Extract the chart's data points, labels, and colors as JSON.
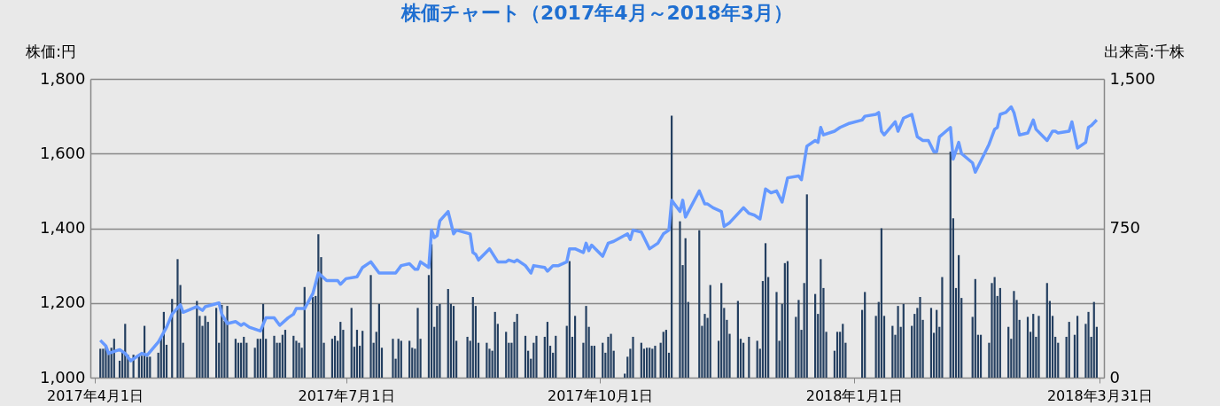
{
  "chart_data": {
    "type": "line",
    "title": "株価チャート（2017年4月～2018年3月）",
    "ylabel": "株価:円",
    "y2label": "出来高:千株",
    "xlim": [
      "2017-04-01",
      "2018-03-31"
    ],
    "xticks": [
      {
        "value": "2017-04-01",
        "label": "2017年4月1日"
      },
      {
        "value": "2017-07-01",
        "label": "2017年7月1日"
      },
      {
        "value": "2017-10-01",
        "label": "2017年10月1日"
      },
      {
        "value": "2018-01-01",
        "label": "2018年1月1日"
      },
      {
        "value": "2018-03-31",
        "label": "2018年3月31日"
      }
    ],
    "ylim": [
      1000,
      1800
    ],
    "yticks": [
      {
        "value": 1000,
        "label": "1,000"
      },
      {
        "value": 1200,
        "label": "1,200"
      },
      {
        "value": 1400,
        "label": "1,400"
      },
      {
        "value": 1600,
        "label": "1,600"
      },
      {
        "value": 1800,
        "label": "1,800"
      }
    ],
    "y2lim": [
      0,
      1500
    ],
    "y2ticks": [
      {
        "value": 0,
        "label": "0"
      },
      {
        "value": 750,
        "label": "750"
      },
      {
        "value": 1500,
        "label": "1,500"
      }
    ],
    "grid": "y",
    "legend": false,
    "series": [
      {
        "type": "bar",
        "axis": "y2",
        "color": "#243f60",
        "x": [
          "2017-04-03",
          "2017-04-04",
          "2017-04-05",
          "2017-04-06",
          "2017-04-07",
          "2017-04-08",
          "2017-04-10",
          "2017-04-11",
          "2017-04-12",
          "2017-04-13",
          "2017-04-15",
          "2017-04-17",
          "2017-04-18",
          "2017-04-19",
          "2017-04-20",
          "2017-04-21",
          "2017-04-24",
          "2017-04-25",
          "2017-04-26",
          "2017-04-27",
          "2017-04-29",
          "2017-05-01",
          "2017-05-02",
          "2017-05-03",
          "2017-05-08",
          "2017-05-09",
          "2017-05-10",
          "2017-05-11",
          "2017-05-12",
          "2017-05-15",
          "2017-05-16",
          "2017-05-17",
          "2017-05-18",
          "2017-05-19",
          "2017-05-22",
          "2017-05-23",
          "2017-05-24",
          "2017-05-25",
          "2017-05-26",
          "2017-05-29",
          "2017-05-30",
          "2017-05-31",
          "2017-06-01",
          "2017-06-02",
          "2017-06-05",
          "2017-06-06",
          "2017-06-07",
          "2017-06-08",
          "2017-06-09",
          "2017-06-12",
          "2017-06-13",
          "2017-06-14",
          "2017-06-15",
          "2017-06-16",
          "2017-06-19",
          "2017-06-20",
          "2017-06-21",
          "2017-06-22",
          "2017-06-23",
          "2017-06-26",
          "2017-06-27",
          "2017-06-28",
          "2017-06-29",
          "2017-06-30",
          "2017-07-03",
          "2017-07-04",
          "2017-07-05",
          "2017-07-06",
          "2017-07-07",
          "2017-07-10",
          "2017-07-11",
          "2017-07-12",
          "2017-07-13",
          "2017-07-14",
          "2017-07-18",
          "2017-07-19",
          "2017-07-20",
          "2017-07-21",
          "2017-07-24",
          "2017-07-25",
          "2017-07-26",
          "2017-07-27",
          "2017-07-28",
          "2017-07-31",
          "2017-08-01",
          "2017-08-02",
          "2017-08-03",
          "2017-08-04",
          "2017-08-07",
          "2017-08-08",
          "2017-08-09",
          "2017-08-10",
          "2017-08-14",
          "2017-08-15",
          "2017-08-16",
          "2017-08-17",
          "2017-08-18",
          "2017-08-21",
          "2017-08-22",
          "2017-08-23",
          "2017-08-24",
          "2017-08-25",
          "2017-08-28",
          "2017-08-29",
          "2017-08-30",
          "2017-08-31",
          "2017-09-01",
          "2017-09-04",
          "2017-09-05",
          "2017-09-06",
          "2017-09-07",
          "2017-09-08",
          "2017-09-11",
          "2017-09-12",
          "2017-09-13",
          "2017-09-14",
          "2017-09-15",
          "2017-09-19",
          "2017-09-20",
          "2017-09-21",
          "2017-09-22",
          "2017-09-25",
          "2017-09-26",
          "2017-09-27",
          "2017-09-28",
          "2017-09-29",
          "2017-10-02",
          "2017-10-03",
          "2017-10-04",
          "2017-10-05",
          "2017-10-06",
          "2017-10-10",
          "2017-10-11",
          "2017-10-12",
          "2017-10-13",
          "2017-10-16",
          "2017-10-17",
          "2017-10-18",
          "2017-10-19",
          "2017-10-20",
          "2017-10-21",
          "2017-10-23",
          "2017-10-24",
          "2017-10-25",
          "2017-10-26",
          "2017-10-27",
          "2017-10-30",
          "2017-10-31",
          "2017-11-01",
          "2017-11-02",
          "2017-11-06",
          "2017-11-07",
          "2017-11-08",
          "2017-11-09",
          "2017-11-10",
          "2017-11-13",
          "2017-11-14",
          "2017-11-15",
          "2017-11-16",
          "2017-11-17",
          "2017-11-20",
          "2017-11-21",
          "2017-11-22",
          "2017-11-24",
          "2017-11-27",
          "2017-11-28",
          "2017-11-29",
          "2017-11-30",
          "2017-12-01",
          "2017-12-04",
          "2017-12-05",
          "2017-12-06",
          "2017-12-07",
          "2017-12-08",
          "2017-12-11",
          "2017-12-12",
          "2017-12-13",
          "2017-12-14",
          "2017-12-15",
          "2017-12-18",
          "2017-12-19",
          "2017-12-20",
          "2017-12-21",
          "2017-12-22",
          "2017-12-25",
          "2017-12-26",
          "2017-12-27",
          "2017-12-28",
          "2017-12-29",
          "2018-01-04",
          "2018-01-05",
          "2018-01-09",
          "2018-01-10",
          "2018-01-11",
          "2018-01-12",
          "2018-01-15",
          "2018-01-16",
          "2018-01-17",
          "2018-01-18",
          "2018-01-19",
          "2018-01-22",
          "2018-01-23",
          "2018-01-24",
          "2018-01-25",
          "2018-01-26",
          "2018-01-29",
          "2018-01-30",
          "2018-01-31",
          "2018-02-01",
          "2018-02-02",
          "2018-02-05",
          "2018-02-06",
          "2018-02-07",
          "2018-02-08",
          "2018-02-09",
          "2018-02-13",
          "2018-02-14",
          "2018-02-15",
          "2018-02-16",
          "2018-02-19",
          "2018-02-20",
          "2018-02-21",
          "2018-02-22",
          "2018-02-23",
          "2018-02-26",
          "2018-02-27",
          "2018-02-28",
          "2018-03-01",
          "2018-03-02",
          "2018-03-05",
          "2018-03-06",
          "2018-03-07",
          "2018-03-08",
          "2018-03-09",
          "2018-03-12",
          "2018-03-13",
          "2018-03-14",
          "2018-03-15",
          "2018-03-16",
          "2018-03-19",
          "2018-03-20",
          "2018-03-22",
          "2018-03-23",
          "2018-03-26",
          "2018-03-27",
          "2018-03-28",
          "2018-03-29",
          "2018-03-30"
        ],
        "values": [
          145,
          145,
          160,
          115,
          150,
          195,
          85,
          130,
          270,
          115,
          115,
          110,
          110,
          260,
          105,
          105,
          125,
          200,
          330,
          165,
          395,
          595,
          465,
          175,
          385,
          310,
          260,
          310,
          280,
          350,
          175,
          365,
          285,
          360,
          195,
          175,
          175,
          205,
          175,
          150,
          195,
          195,
          370,
          195,
          210,
          175,
          175,
          215,
          240,
          210,
          185,
          175,
          150,
          455,
          405,
          410,
          720,
          605,
          175,
          195,
          210,
          185,
          280,
          240,
          350,
          155,
          240,
          160,
          235,
          515,
          175,
          230,
          370,
          150,
          195,
          95,
          195,
          185,
          185,
          150,
          145,
          350,
          195,
          515,
          670,
          255,
          360,
          370,
          445,
          370,
          360,
          185,
          205,
          185,
          405,
          360,
          175,
          175,
          145,
          135,
          330,
          270,
          230,
          175,
          175,
          280,
          320,
          210,
          135,
          95,
          175,
          210,
          205,
          280,
          160,
          125,
          210,
          260,
          585,
          205,
          310,
          175,
          360,
          255,
          160,
          160,
          175,
          125,
          205,
          220,
          135,
          20,
          105,
          145,
          205,
          175,
          145,
          150,
          150,
          145,
          160,
          175,
          230,
          240,
          125,
          1315,
          785,
          565,
          700,
          380,
          740,
          260,
          320,
          300,
          465,
          185,
          475,
          350,
          290,
          220,
          385,
          195,
          175,
          205,
          185,
          145,
          485,
          675,
          505,
          430,
          185,
          370,
          575,
          585,
          305,
          390,
          240,
          475,
          920,
          420,
          320,
          595,
          450,
          230,
          135,
          230,
          230,
          270,
          175,
          340,
          430,
          310,
          380,
          750,
          310,
          260,
          215,
          360,
          255,
          370,
          260,
          320,
          350,
          405,
          290,
          350,
          225,
          340,
          255,
          505,
          1135,
          800,
          450,
          615,
          400,
          305,
          495,
          215,
          215,
          175,
          475,
          505,
          410,
          450,
          255,
          195,
          435,
          390,
          290,
          305,
          230,
          320,
          205,
          310,
          475,
          385,
          310,
          205,
          175,
          205,
          280,
          215,
          310,
          270,
          330,
          205,
          380,
          255
        ]
      },
      {
        "color": "#6699ff",
        "x": [
          "2017-04-03",
          "2017-04-05",
          "2017-04-06",
          "2017-04-10",
          "2017-04-12",
          "2017-04-14",
          "2017-04-18",
          "2017-04-20",
          "2017-04-24",
          "2017-04-27",
          "2017-04-29",
          "2017-05-02",
          "2017-05-03",
          "2017-05-08",
          "2017-05-10",
          "2017-05-11",
          "2017-05-16",
          "2017-05-17",
          "2017-05-19",
          "2017-05-22",
          "2017-05-24",
          "2017-05-25",
          "2017-05-27",
          "2017-05-31",
          "2017-06-02",
          "2017-06-05",
          "2017-06-07",
          "2017-06-10",
          "2017-06-12",
          "2017-06-13",
          "2017-06-16",
          "2017-06-19",
          "2017-06-21",
          "2017-06-24",
          "2017-06-28",
          "2017-06-29",
          "2017-07-01",
          "2017-07-05",
          "2017-07-07",
          "2017-07-10",
          "2017-07-13",
          "2017-07-19",
          "2017-07-21",
          "2017-07-24",
          "2017-07-26",
          "2017-07-27",
          "2017-07-28",
          "2017-07-31",
          "2017-08-01",
          "2017-08-02",
          "2017-08-03",
          "2017-08-04",
          "2017-08-07",
          "2017-08-09",
          "2017-08-10",
          "2017-08-15",
          "2017-08-16",
          "2017-08-17",
          "2017-08-18",
          "2017-08-22",
          "2017-08-25",
          "2017-08-28",
          "2017-08-29",
          "2017-08-31",
          "2017-09-01",
          "2017-09-04",
          "2017-09-06",
          "2017-09-07",
          "2017-09-11",
          "2017-09-12",
          "2017-09-14",
          "2017-09-16",
          "2017-09-19",
          "2017-09-20",
          "2017-09-22",
          "2017-09-25",
          "2017-09-26",
          "2017-09-27",
          "2017-09-28",
          "2017-10-02",
          "2017-10-04",
          "2017-10-06",
          "2017-10-11",
          "2017-10-12",
          "2017-10-13",
          "2017-10-16",
          "2017-10-19",
          "2017-10-22",
          "2017-10-24",
          "2017-10-26",
          "2017-10-27",
          "2017-10-30",
          "2017-10-31",
          "2017-11-01",
          "2017-11-06",
          "2017-11-08",
          "2017-11-09",
          "2017-11-11",
          "2017-11-14",
          "2017-11-15",
          "2017-11-17",
          "2017-11-22",
          "2017-11-24",
          "2017-11-26",
          "2017-11-28",
          "2017-11-30",
          "2017-12-02",
          "2017-12-04",
          "2017-12-06",
          "2017-12-08",
          "2017-12-12",
          "2017-12-13",
          "2017-12-15",
          "2017-12-18",
          "2017-12-19",
          "2017-12-20",
          "2017-12-21",
          "2017-12-25",
          "2017-12-27",
          "2017-12-30",
          "2018-01-04",
          "2018-01-05",
          "2018-01-09",
          "2018-01-10",
          "2018-01-11",
          "2018-01-12",
          "2018-01-16",
          "2018-01-17",
          "2018-01-19",
          "2018-01-22",
          "2018-01-24",
          "2018-01-26",
          "2018-01-28",
          "2018-01-30",
          "2018-01-31",
          "2018-02-01",
          "2018-02-05",
          "2018-02-06",
          "2018-02-08",
          "2018-02-09",
          "2018-02-13",
          "2018-02-14",
          "2018-02-19",
          "2018-02-21",
          "2018-02-22",
          "2018-02-23",
          "2018-02-25",
          "2018-02-27",
          "2018-02-28",
          "2018-03-02",
          "2018-03-05",
          "2018-03-07",
          "2018-03-08",
          "2018-03-12",
          "2018-03-14",
          "2018-03-15",
          "2018-03-16",
          "2018-03-20",
          "2018-03-21",
          "2018-03-23",
          "2018-03-26",
          "2018-03-27",
          "2018-03-28",
          "2018-03-30"
        ],
        "values": [
          1100,
          1085,
          1065,
          1075,
          1065,
          1045,
          1065,
          1060,
          1095,
          1135,
          1170,
          1195,
          1175,
          1190,
          1180,
          1190,
          1200,
          1170,
          1145,
          1150,
          1140,
          1145,
          1135,
          1125,
          1160,
          1160,
          1140,
          1160,
          1170,
          1185,
          1185,
          1225,
          1280,
          1260,
          1260,
          1250,
          1265,
          1270,
          1295,
          1310,
          1280,
          1280,
          1300,
          1305,
          1290,
          1290,
          1310,
          1295,
          1395,
          1375,
          1380,
          1420,
          1445,
          1385,
          1395,
          1385,
          1335,
          1330,
          1315,
          1345,
          1310,
          1310,
          1315,
          1310,
          1315,
          1300,
          1280,
          1300,
          1295,
          1285,
          1300,
          1300,
          1310,
          1345,
          1345,
          1335,
          1360,
          1340,
          1355,
          1325,
          1360,
          1365,
          1385,
          1370,
          1395,
          1390,
          1345,
          1360,
          1385,
          1395,
          1475,
          1445,
          1475,
          1430,
          1500,
          1465,
          1465,
          1455,
          1445,
          1405,
          1415,
          1455,
          1440,
          1435,
          1425,
          1505,
          1495,
          1500,
          1470,
          1535,
          1540,
          1530,
          1620,
          1635,
          1630,
          1670,
          1650,
          1660,
          1670,
          1680,
          1690,
          1700,
          1705,
          1710,
          1660,
          1650,
          1685,
          1660,
          1695,
          1705,
          1645,
          1635,
          1635,
          1605,
          1605,
          1645,
          1670,
          1585,
          1630,
          1600,
          1575,
          1550,
          1625,
          1665,
          1670,
          1705,
          1710,
          1725,
          1710,
          1650,
          1655,
          1690,
          1665,
          1635,
          1660,
          1660,
          1655,
          1660,
          1685,
          1615,
          1630,
          1670,
          1675,
          1690
        ]
      }
    ]
  }
}
